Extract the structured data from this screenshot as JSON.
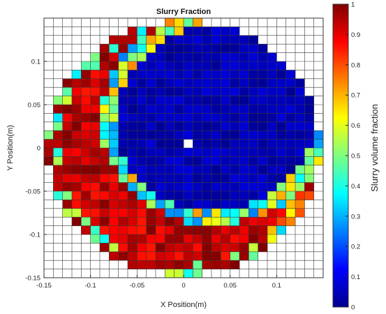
{
  "chart_data": {
    "type": "heatmap",
    "title": "Slurry Fraction",
    "xlabel": "X Position(m)",
    "ylabel": "Y Position(m)",
    "xlim": [
      -0.15,
      0.15
    ],
    "ylim": [
      -0.15,
      0.15
    ],
    "x_ticks": [
      "-0.15",
      "-0.1",
      "-0.05",
      "0",
      "0.05",
      "0.1"
    ],
    "y_ticks": [
      "0.1",
      "0.05",
      "0",
      "-0.05",
      "-0.1",
      "-0.15"
    ],
    "colorbar": {
      "label": "Slurry volume fraction",
      "range": [
        0,
        1
      ],
      "ticks": [
        "1",
        "0.9",
        "0.8",
        "0.7",
        "0.6",
        "0.5",
        "0.4",
        "0.3",
        "0.2",
        "0.1",
        "0"
      ],
      "colormap": "jet"
    },
    "grid": {
      "cells_x": 30,
      "cells_y": 30,
      "cell_size_m": 0.01,
      "domain_radius_m": 0.15,
      "outside_domain": "empty (white cells with grid lines)"
    },
    "field_description": {
      "annular_band": {
        "value_range": [
          0.85,
          1.0
        ],
        "location": "left and lower-left of the domain, curving from x=-0.12,y=0.13 down to x=0.08,y=-0.12"
      },
      "interface_band": {
        "value_range": [
          0.2,
          0.75
        ],
        "location": "thin transition layer on the inner and outer edges of the high-fraction band"
      },
      "core": {
        "value_range": [
          0.0,
          0.1
        ],
        "location": "right and upper interior of the domain"
      },
      "empty_cell": {
        "x": 0.0,
        "y": 0.0
      }
    }
  }
}
